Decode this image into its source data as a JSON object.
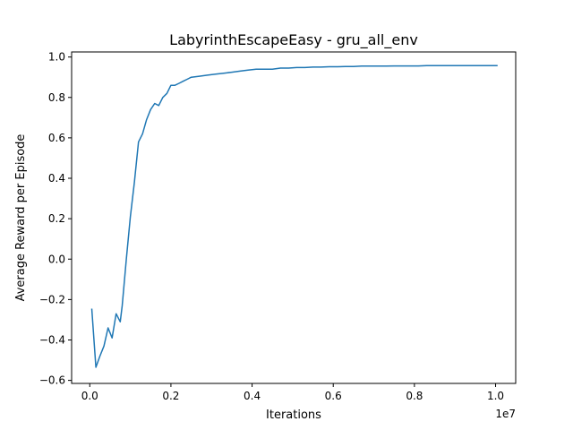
{
  "chart_data": {
    "type": "line",
    "title": "LabyrinthEscapeEasy - gru_all_env",
    "xlabel": "Iterations",
    "ylabel": "Average Reward per Episode",
    "x_offset_label": "1e7",
    "xlim": [
      -0.0447,
      1.0496
    ],
    "ylim": [
      -0.615,
      1.025
    ],
    "xticks": [
      0.0,
      0.2,
      0.4,
      0.6,
      0.8,
      1.0
    ],
    "xtick_labels": [
      "0.0",
      "0.2",
      "0.4",
      "0.6",
      "0.8",
      "1.0"
    ],
    "yticks": [
      -0.6,
      -0.4,
      -0.2,
      0.0,
      0.2,
      0.4,
      0.6,
      0.8,
      1.0
    ],
    "ytick_labels": [
      "−0.6",
      "−0.4",
      "−0.2",
      "0.0",
      "0.2",
      "0.4",
      "0.6",
      "0.8",
      "1.0"
    ],
    "grid": false,
    "series": [
      {
        "color": "#1f77b4",
        "x": [
          0.005,
          0.015,
          0.025,
          0.035,
          0.045,
          0.055,
          0.065,
          0.075,
          0.08,
          0.09,
          0.1,
          0.11,
          0.12,
          0.13,
          0.14,
          0.15,
          0.16,
          0.17,
          0.18,
          0.19,
          0.2,
          0.21,
          0.22,
          0.23,
          0.24,
          0.25,
          0.27,
          0.29,
          0.31,
          0.33,
          0.35,
          0.37,
          0.39,
          0.41,
          0.43,
          0.45,
          0.47,
          0.49,
          0.51,
          0.53,
          0.55,
          0.57,
          0.59,
          0.61,
          0.63,
          0.65,
          0.67,
          0.69,
          0.71,
          0.73,
          0.75,
          0.77,
          0.79,
          0.81,
          0.83,
          0.85,
          0.87,
          0.89,
          0.91,
          0.93,
          0.95,
          0.97,
          0.99,
          1.005
        ],
        "y": [
          -0.245,
          -0.535,
          -0.48,
          -0.43,
          -0.34,
          -0.39,
          -0.27,
          -0.31,
          -0.23,
          0.0,
          0.21,
          0.38,
          0.58,
          0.62,
          0.69,
          0.74,
          0.77,
          0.76,
          0.8,
          0.82,
          0.86,
          0.86,
          0.87,
          0.88,
          0.89,
          0.9,
          0.905,
          0.91,
          0.915,
          0.92,
          0.925,
          0.93,
          0.935,
          0.94,
          0.94,
          0.94,
          0.945,
          0.945,
          0.948,
          0.948,
          0.95,
          0.95,
          0.952,
          0.952,
          0.953,
          0.953,
          0.955,
          0.955,
          0.955,
          0.955,
          0.956,
          0.956,
          0.956,
          0.956,
          0.957,
          0.957,
          0.957,
          0.957,
          0.957,
          0.957,
          0.957,
          0.957,
          0.957,
          0.957
        ]
      }
    ]
  }
}
